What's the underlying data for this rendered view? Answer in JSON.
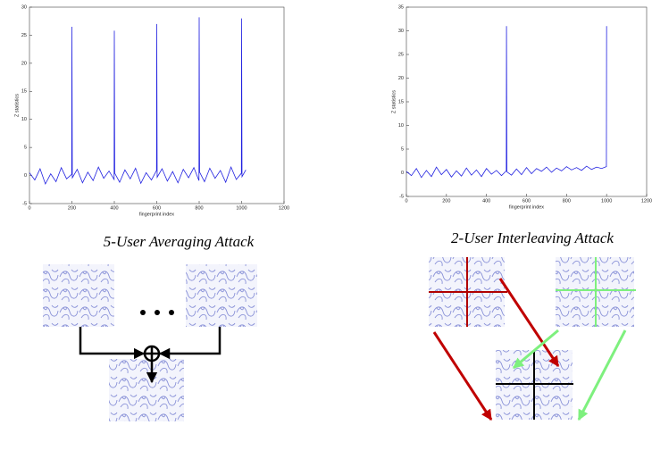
{
  "chart_data": [
    {
      "type": "line",
      "x_label": "fingerprint index",
      "y_label": "Z statistics",
      "color": "#2020e0",
      "x": [
        0,
        25,
        50,
        75,
        100,
        125,
        150,
        175,
        199,
        200,
        201,
        202,
        225,
        250,
        275,
        300,
        325,
        350,
        375,
        399,
        400,
        401,
        402,
        425,
        450,
        475,
        500,
        525,
        550,
        575,
        599,
        600,
        601,
        602,
        625,
        650,
        675,
        700,
        725,
        750,
        775,
        799,
        800,
        801,
        802,
        825,
        850,
        875,
        900,
        925,
        950,
        975,
        999,
        1000,
        1001,
        1002,
        1020
      ],
      "values": [
        0.5,
        -0.8,
        1.2,
        -1.5,
        0.3,
        -1.1,
        1.4,
        -0.6,
        0.2,
        26.5,
        13.5,
        -0.4,
        1.1,
        -1.3,
        0.6,
        -0.9,
        1.5,
        -0.5,
        0.8,
        -0.7,
        25.8,
        13.2,
        0.4,
        -1.2,
        1.0,
        -0.6,
        1.3,
        -1.4,
        0.5,
        -0.8,
        0.9,
        27,
        13.4,
        -0.3,
        1.2,
        -1.0,
        0.7,
        -1.3,
        1.1,
        -0.4,
        1.4,
        -0.9,
        28.2,
        13.3,
        0.6,
        -1.1,
        1.3,
        -0.5,
        0.9,
        -1.2,
        1.5,
        -0.7,
        0.4,
        28,
        13.8,
        -0.2,
        1.0
      ],
      "xlim": [
        0,
        1200
      ],
      "xticks": [
        0,
        200,
        400,
        600,
        800,
        1000,
        1200
      ],
      "ylim": [
        -5,
        30
      ],
      "yticks": [
        -5,
        0,
        5,
        10,
        15,
        20,
        25,
        30
      ]
    },
    {
      "type": "line",
      "x_label": "fingerprint index",
      "y_label": "Z statistics",
      "color": "#2020e0",
      "x": [
        0,
        25,
        50,
        75,
        100,
        125,
        150,
        175,
        200,
        225,
        250,
        275,
        300,
        325,
        350,
        375,
        400,
        425,
        450,
        475,
        499,
        500,
        501,
        502,
        525,
        550,
        575,
        600,
        625,
        650,
        675,
        700,
        725,
        750,
        775,
        800,
        825,
        850,
        875,
        900,
        925,
        950,
        975,
        999,
        1000
      ],
      "values": [
        0.3,
        -0.6,
        0.9,
        -1.0,
        0.5,
        -0.8,
        1.2,
        -0.4,
        0.7,
        -0.9,
        0.4,
        -0.7,
        1.0,
        -0.5,
        0.6,
        -0.8,
        0.9,
        -0.3,
        0.5,
        -0.6,
        0.4,
        31,
        16,
        0.2,
        -0.5,
        0.8,
        -0.4,
        1.1,
        -0.2,
        0.9,
        0.3,
        1.2,
        0.1,
        1.0,
        0.4,
        1.3,
        0.6,
        1.1,
        0.5,
        1.4,
        0.7,
        1.2,
        0.9,
        1.3,
        31
      ],
      "xlim": [
        0,
        1200
      ],
      "xticks": [
        0,
        200,
        400,
        600,
        800,
        1000,
        1200
      ],
      "ylim": [
        -5,
        35
      ],
      "yticks": [
        -5,
        0,
        5,
        10,
        15,
        20,
        25,
        30,
        35
      ]
    }
  ],
  "figure": {
    "left_caption": "5-User Averaging Attack",
    "right_caption": "2-User Interleaving Attack"
  }
}
